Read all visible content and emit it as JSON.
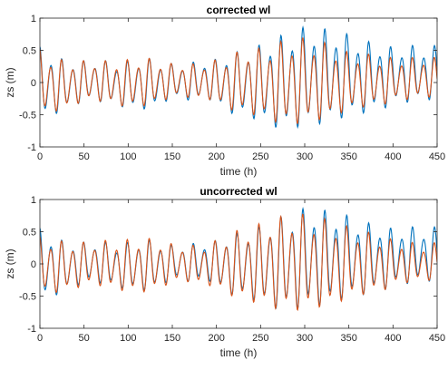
{
  "chart_data": [
    {
      "type": "line",
      "title": "corrected wl",
      "xlabel": "time (h)",
      "ylabel": "zs (m)",
      "xlim": [
        0,
        450
      ],
      "ylim": [
        -1,
        1
      ],
      "xticks": [
        0,
        50,
        100,
        150,
        200,
        250,
        300,
        350,
        400,
        450
      ],
      "yticks": [
        -1,
        -0.5,
        0,
        0.5,
        1
      ],
      "ytick_labels": [
        "-1",
        "-0.5",
        "0",
        "0.5",
        "1"
      ],
      "grid": false,
      "series": [
        {
          "color": "#0072BD",
          "x": [
            0,
            15,
            30,
            45,
            60,
            75,
            90,
            105,
            120,
            135,
            150,
            165,
            180,
            195,
            210,
            225,
            240,
            255,
            270,
            285,
            300,
            315,
            330,
            345,
            360,
            375,
            390,
            405,
            420,
            435,
            450
          ],
          "y_max": [
            0.58,
            0.45,
            0.35,
            0.35,
            0.35,
            0.35,
            0.3,
            0.38,
            0.4,
            0.35,
            0.3,
            0.3,
            0.35,
            0.35,
            0.45,
            0.5,
            0.55,
            0.65,
            0.75,
            0.8,
            0.9,
            0.88,
            0.85,
            0.8,
            0.7,
            0.65,
            0.6,
            0.55,
            0.6,
            0.55,
            0.6
          ],
          "y_min": [
            -0.62,
            -0.55,
            -0.45,
            -0.35,
            -0.3,
            -0.35,
            -0.4,
            -0.45,
            -0.45,
            -0.4,
            -0.25,
            -0.3,
            -0.3,
            -0.3,
            -0.5,
            -0.55,
            -0.6,
            -0.7,
            -0.78,
            -0.78,
            -0.75,
            -0.72,
            -0.68,
            -0.6,
            -0.55,
            -0.5,
            -0.45,
            -0.35,
            -0.35,
            -0.3,
            -0.32
          ]
        },
        {
          "color": "#D95319",
          "x": [
            0,
            15,
            30,
            45,
            60,
            75,
            90,
            105,
            120,
            135,
            150,
            165,
            180,
            195,
            210,
            225,
            240,
            255,
            270,
            285,
            300,
            315,
            330,
            345,
            360,
            375,
            390,
            405,
            420,
            435,
            450
          ],
          "y_max": [
            0.55,
            0.4,
            0.35,
            0.35,
            0.35,
            0.35,
            0.35,
            0.38,
            0.4,
            0.35,
            0.3,
            0.3,
            0.3,
            0.35,
            0.4,
            0.5,
            0.55,
            0.55,
            0.65,
            0.7,
            0.72,
            0.68,
            0.6,
            0.5,
            0.48,
            0.45,
            0.4,
            0.4,
            0.4,
            0.4,
            0.4
          ],
          "y_min": [
            -0.55,
            -0.5,
            -0.45,
            -0.35,
            -0.3,
            -0.35,
            -0.4,
            -0.42,
            -0.4,
            -0.35,
            -0.25,
            -0.25,
            -0.3,
            -0.3,
            -0.45,
            -0.5,
            -0.55,
            -0.6,
            -0.7,
            -0.72,
            -0.7,
            -0.65,
            -0.6,
            -0.5,
            -0.45,
            -0.4,
            -0.38,
            -0.3,
            -0.3,
            -0.25,
            -0.28
          ]
        }
      ]
    },
    {
      "type": "line",
      "title": "uncorrected wl",
      "xlabel": "time (h)",
      "ylabel": "zs (m)",
      "xlim": [
        0,
        450
      ],
      "ylim": [
        -1,
        1
      ],
      "xticks": [
        0,
        50,
        100,
        150,
        200,
        250,
        300,
        350,
        400,
        450
      ],
      "yticks": [
        -1,
        -0.5,
        0,
        0.5,
        1
      ],
      "ytick_labels": [
        "-1",
        "-0.5",
        "0",
        "0.5",
        "1"
      ],
      "grid": false,
      "series": [
        {
          "color": "#0072BD",
          "x": [
            0,
            15,
            30,
            45,
            60,
            75,
            90,
            105,
            120,
            135,
            150,
            165,
            180,
            195,
            210,
            225,
            240,
            255,
            270,
            285,
            300,
            315,
            330,
            345,
            360,
            375,
            390,
            405,
            420,
            435,
            450
          ],
          "y_max": [
            0.58,
            0.45,
            0.35,
            0.35,
            0.35,
            0.35,
            0.3,
            0.38,
            0.4,
            0.35,
            0.3,
            0.3,
            0.35,
            0.35,
            0.45,
            0.5,
            0.55,
            0.65,
            0.75,
            0.8,
            0.9,
            0.88,
            0.85,
            0.8,
            0.7,
            0.65,
            0.6,
            0.55,
            0.6,
            0.55,
            0.6
          ],
          "y_min": [
            -0.62,
            -0.55,
            -0.45,
            -0.35,
            -0.3,
            -0.35,
            -0.4,
            -0.45,
            -0.45,
            -0.4,
            -0.25,
            -0.3,
            -0.3,
            -0.3,
            -0.5,
            -0.55,
            -0.6,
            -0.7,
            -0.78,
            -0.78,
            -0.75,
            -0.72,
            -0.68,
            -0.6,
            -0.55,
            -0.5,
            -0.45,
            -0.35,
            -0.35,
            -0.3,
            -0.32
          ]
        },
        {
          "color": "#D95319",
          "x": [
            0,
            15,
            30,
            45,
            60,
            75,
            90,
            105,
            120,
            135,
            150,
            165,
            180,
            195,
            210,
            225,
            240,
            255,
            270,
            285,
            300,
            315,
            330,
            345,
            360,
            375,
            390,
            405,
            420,
            435,
            450
          ],
          "y_max": [
            0.45,
            0.4,
            0.35,
            0.35,
            0.35,
            0.38,
            0.38,
            0.4,
            0.42,
            0.38,
            0.32,
            0.3,
            0.3,
            0.35,
            0.45,
            0.55,
            0.6,
            0.68,
            0.75,
            0.8,
            0.8,
            0.75,
            0.7,
            0.62,
            0.55,
            0.5,
            0.42,
            0.38,
            0.35,
            0.3,
            0.35
          ],
          "y_min": [
            -0.5,
            -0.5,
            -0.45,
            -0.4,
            -0.35,
            -0.4,
            -0.45,
            -0.48,
            -0.48,
            -0.42,
            -0.32,
            -0.3,
            -0.35,
            -0.38,
            -0.5,
            -0.6,
            -0.65,
            -0.72,
            -0.78,
            -0.8,
            -0.8,
            -0.75,
            -0.72,
            -0.62,
            -0.55,
            -0.5,
            -0.45,
            -0.35,
            -0.32,
            -0.28,
            -0.3
          ]
        }
      ]
    }
  ]
}
